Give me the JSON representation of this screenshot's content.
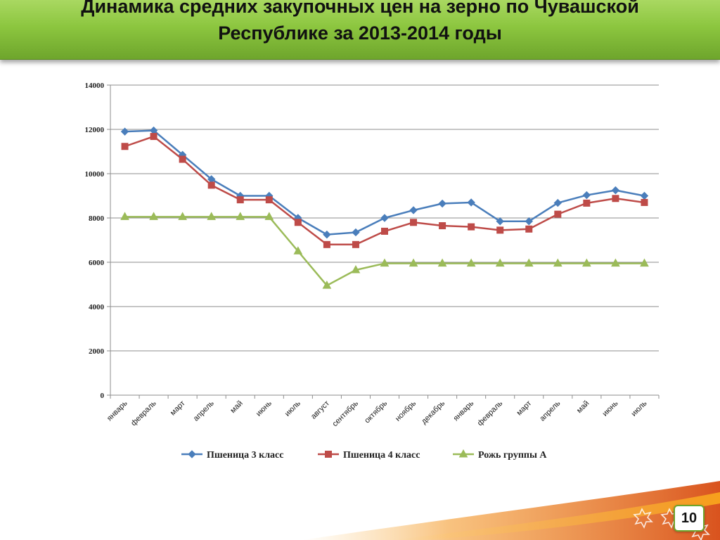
{
  "slide": {
    "title_line_1": "Динамика средних закупочных цен на зерно по Чувашской",
    "title_line_2": "Республике за 2013-2014 годы",
    "page_number": "10",
    "accent_color": "#8cc63f"
  },
  "chart_data": {
    "type": "line",
    "title": "",
    "xlabel": "",
    "ylabel": "",
    "categories": [
      "январь",
      "февраль",
      "март",
      "апрель",
      "май",
      "июнь",
      "июль",
      "август",
      "сентябрь",
      "октябрь",
      "ноябрь",
      "декабрь",
      "январь",
      "февраль",
      "март",
      "апрель",
      "май",
      "июнь",
      "июль"
    ],
    "ylim": [
      0,
      14000
    ],
    "yticks": [
      0,
      2000,
      4000,
      6000,
      8000,
      10000,
      12000,
      14000
    ],
    "grid": true,
    "legend_position": "bottom",
    "series": [
      {
        "name": "Пшеница 3 класс",
        "color": "#4a7ebb",
        "marker": "diamond",
        "values": [
          11900,
          11950,
          10850,
          9750,
          9000,
          9000,
          8000,
          7250,
          7350,
          8000,
          8350,
          8650,
          8700,
          7850,
          7850,
          8680,
          9030,
          9250,
          9000
        ]
      },
      {
        "name": "Пшеница 4 класс",
        "color": "#be4b48",
        "marker": "square",
        "values": [
          11230,
          11680,
          10650,
          9480,
          8820,
          8820,
          7800,
          6800,
          6800,
          7400,
          7800,
          7650,
          7600,
          7450,
          7500,
          8170,
          8670,
          8880,
          8700
        ]
      },
      {
        "name": "Рожь группы А",
        "color": "#9bbb59",
        "marker": "triangle",
        "values": [
          8050,
          8050,
          8050,
          8050,
          8050,
          8050,
          6500,
          4950,
          5650,
          5950,
          5950,
          5950,
          5950,
          5950,
          5950,
          5950,
          5950,
          5950,
          5950
        ]
      }
    ]
  }
}
